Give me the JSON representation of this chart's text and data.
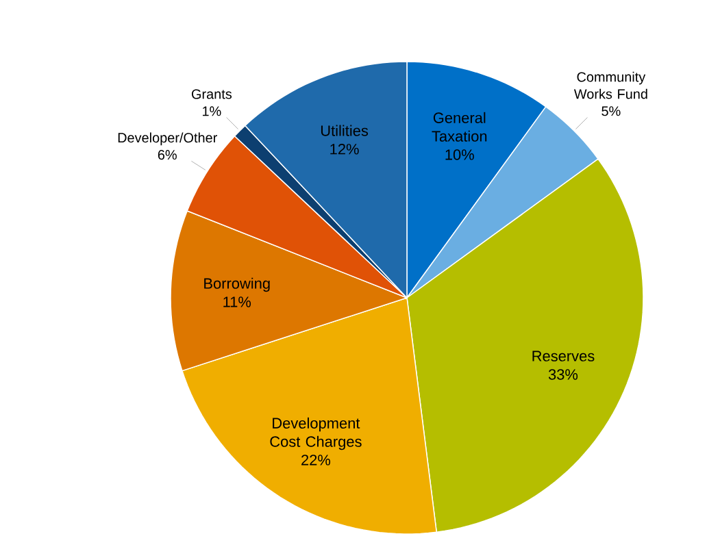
{
  "chart_data": {
    "type": "pie",
    "categories": [
      "General Taxation",
      "Community Works Fund",
      "Reserves",
      "Development Cost Charges",
      "Borrowing",
      "Developer/Other",
      "Grants",
      "Utilities"
    ],
    "values": [
      10,
      5,
      33,
      22,
      11,
      6,
      1,
      12
    ],
    "value_labels": [
      "10%",
      "5%",
      "33%",
      "22%",
      "11%",
      "6%",
      "1%",
      "12%"
    ],
    "colors": [
      "#0070c8",
      "#6aaee2",
      "#b5be00",
      "#f0ae00",
      "#dd7700",
      "#e05206",
      "#0d3f70",
      "#1f6aab"
    ]
  }
}
